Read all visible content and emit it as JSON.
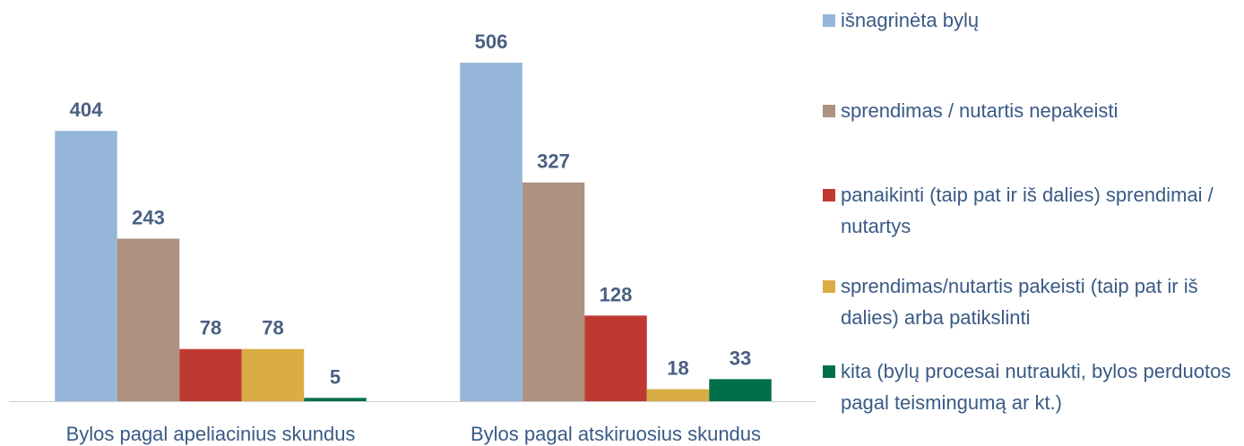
{
  "chart_data": {
    "type": "bar",
    "categories": [
      "Bylos pagal apeliacinius skundus",
      "Bylos pagal atskiruosius skundus"
    ],
    "series": [
      {
        "name": "išnagrinėta bylų",
        "color": "#95b6d8",
        "values": [
          404,
          506
        ]
      },
      {
        "name": "sprendimas / nutartis nepakeisti",
        "color": "#ad9280",
        "values": [
          243,
          327
        ]
      },
      {
        "name": "panaikinti (taip pat ir iš dalies) sprendimai / nutartys",
        "color": "#be3a31",
        "values": [
          78,
          128
        ]
      },
      {
        "name": "sprendimas/nutartis pakeisti (taip pat ir iš dalies) arba patikslinti",
        "color": "#d9ad43",
        "values": [
          78,
          18
        ]
      },
      {
        "name": "kita (bylų procesai nutraukti, bylos perduotos pagal teismingumą ar kt.)",
        "color": "#00704a",
        "values": [
          5,
          33
        ]
      }
    ],
    "legend": "right"
  }
}
